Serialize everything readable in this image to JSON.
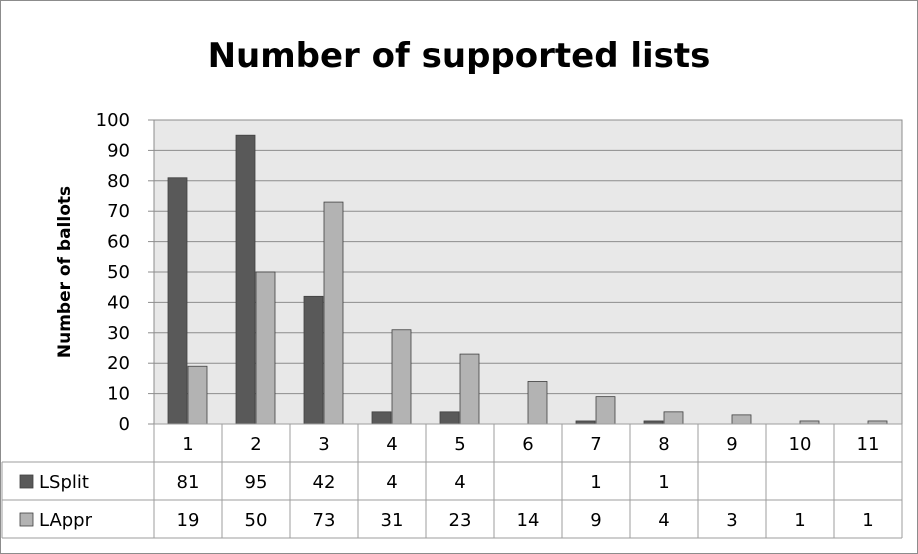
{
  "chart_data": {
    "type": "bar",
    "title": "Number of supported lists",
    "xlabel": "",
    "ylabel": "Number of ballots",
    "ylim": [
      0,
      100
    ],
    "yticks": [
      0,
      10,
      20,
      30,
      40,
      50,
      60,
      70,
      80,
      90,
      100
    ],
    "categories": [
      "1",
      "2",
      "3",
      "4",
      "5",
      "6",
      "7",
      "8",
      "9",
      "10",
      "11"
    ],
    "series": [
      {
        "name": "LSplit",
        "color": "#595959",
        "values": [
          81,
          95,
          42,
          4,
          4,
          null,
          1,
          1,
          null,
          null,
          null
        ]
      },
      {
        "name": "LAppr",
        "color": "#b3b3b3",
        "values": [
          19,
          50,
          73,
          31,
          23,
          14,
          9,
          4,
          3,
          1,
          1
        ]
      }
    ],
    "grid": true,
    "legend": "data table below the plot",
    "plot_background": "#e8e8e8"
  }
}
